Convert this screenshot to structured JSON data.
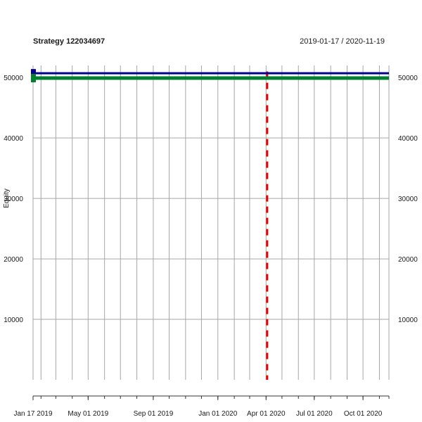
{
  "chart_data": {
    "type": "line",
    "title": "Strategy 122034697",
    "date_range": "2019-01-17 / 2020-11-19",
    "ylabel": "Equity",
    "ylim": [
      0,
      52000
    ],
    "y_ticks": [
      10000,
      20000,
      30000,
      40000,
      50000
    ],
    "x_range": [
      "2019-01-17",
      "2020-11-19"
    ],
    "x_tick_labels": [
      {
        "date": "2019-01-17",
        "label": "Jan 17 2019"
      },
      {
        "date": "2019-05-01",
        "label": "May 01 2019"
      },
      {
        "date": "2019-09-01",
        "label": "Sep 01 2019"
      },
      {
        "date": "2020-01-01",
        "label": "Jan 01 2020"
      },
      {
        "date": "2020-04-01",
        "label": "Apr 01 2020"
      },
      {
        "date": "2020-07-01",
        "label": "Jul 01 2020"
      },
      {
        "date": "2020-10-01",
        "label": "Oct 01 2020"
      }
    ],
    "grid": true,
    "series": [
      {
        "color": "#00008b",
        "style": "solid",
        "x": [
          "2019-01-17",
          "2020-11-19"
        ],
        "values": [
          50700,
          50700
        ]
      },
      {
        "color": "#008030",
        "style": "solid",
        "x": [
          "2019-01-17",
          "2020-11-19"
        ],
        "values": [
          49900,
          49900
        ]
      }
    ],
    "vline": {
      "date": "2020-04-03",
      "color": "#ee0000",
      "style": "dashed",
      "y_top": 51000
    }
  }
}
